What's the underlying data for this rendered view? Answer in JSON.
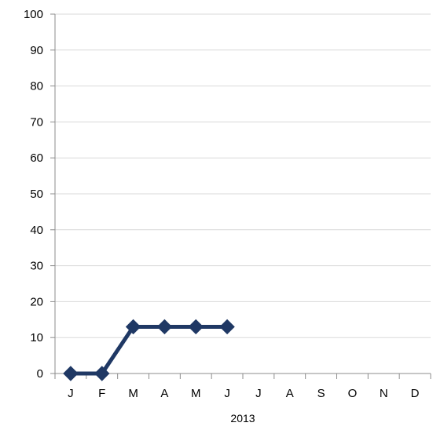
{
  "chart_data": {
    "type": "line",
    "categories": [
      "J",
      "F",
      "M",
      "A",
      "M",
      "J",
      "J",
      "A",
      "S",
      "O",
      "N",
      "D"
    ],
    "category_group_label": "2013",
    "series": [
      {
        "values": [
          0,
          0,
          13,
          13,
          13,
          13,
          null,
          null,
          null,
          null,
          null,
          null
        ],
        "color": "#1f3864",
        "marker": "diamond"
      }
    ],
    "ylim": [
      0,
      100
    ],
    "yticks": [
      0,
      10,
      20,
      30,
      40,
      50,
      60,
      70,
      80,
      90,
      100
    ],
    "grid": true,
    "legend": "none",
    "title": "",
    "xlabel": "",
    "ylabel": ""
  }
}
